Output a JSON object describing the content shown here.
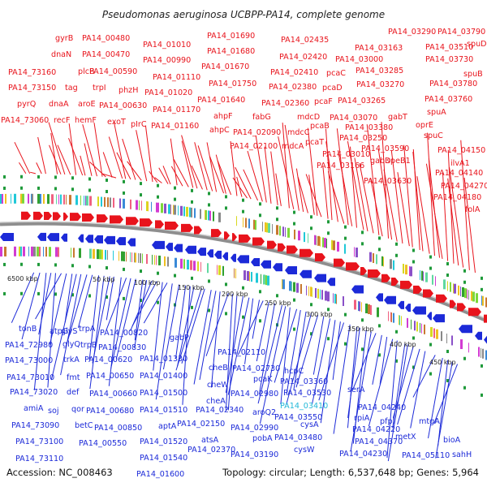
{
  "title": "Pseudomonas aeruginosa UCBPP-PA14, complete genome",
  "accession": "Accession: NC_008463",
  "topology": "Topology: circular; Length: 6,537,648 bp; Genes: 5,964",
  "colors": {
    "forward": "#e8141c",
    "reverse": "#1c2ad8",
    "cyan_label": "#22b8d8",
    "backbone": "#8e8e8e",
    "tick_green": "#1f9a3a"
  },
  "kbp_labels": [
    {
      "text": "6500 kbp",
      "id": "kbp-6500"
    },
    {
      "text": "50 kbp",
      "id": "kbp-50"
    },
    {
      "text": "100 kbp",
      "id": "kbp-100"
    },
    {
      "text": "150 kbp",
      "id": "kbp-150"
    },
    {
      "text": "200 kbp",
      "id": "kbp-200"
    },
    {
      "text": "250 kbp",
      "id": "kbp-250"
    },
    {
      "text": "300 kbp",
      "id": "kbp-300"
    },
    {
      "text": "350 kbp",
      "id": "kbp-350"
    },
    {
      "text": "400 kbp",
      "id": "kbp-400"
    },
    {
      "text": "450 kbp",
      "id": "kbp-450"
    }
  ],
  "forward_genes": [
    "PA14_73160",
    "PA14_73150",
    "PA14_73060",
    "pyrQ",
    "dnaA",
    "recF",
    "gyrB",
    "dnaN",
    "tag",
    "plcB",
    "PA14_00480",
    "PA14_00470",
    "aroE",
    "hemF",
    "trpI",
    "PA14_00590",
    "phzH",
    "PA14_00630",
    "exoT",
    "pIrC",
    "PA14_01010",
    "PA14_00990",
    "PA14_01110",
    "PA14_01020",
    "PA14_01170",
    "PA14_01160",
    "PA14_01690",
    "PA14_01680",
    "PA14_01670",
    "PA14_01750",
    "PA14_01640",
    "ahpF",
    "ahpC",
    "PA14_02435",
    "PA14_02420",
    "PA14_02410",
    "PA14_02380",
    "PA14_02360",
    "fabG",
    "mdcD",
    "PA14_02090",
    "mdcC",
    "PA14_02100",
    "mdcA",
    "pcaC",
    "pcaD",
    "PA14_03000",
    "pcaF",
    "pcaB",
    "pcaT",
    "PA14_03070",
    "PA14_03010",
    "PA14_03166",
    "PA14_03163",
    "PA14_03285",
    "PA14_03270",
    "PA14_03265",
    "PA14_03250",
    "PA14_03380",
    "PA14_03590",
    "gabD",
    "speB1",
    "PA14_03630",
    "gabT",
    "PA14_03290",
    "PA14_03790",
    "PA14_03510",
    "spuD",
    "PA14_03730",
    "spuB",
    "PA14_03780",
    "PA14_03760",
    "spuA",
    "oprE",
    "spuC",
    "PA14_04150",
    "ilvA1",
    "PA14_04140",
    "PA14_04270",
    "PA14_04180",
    "folA"
  ],
  "reverse_genes": [
    "tonB",
    "atpG",
    "glyS",
    "trpA",
    "PA14_00820",
    "PA14_72980",
    "glyQ",
    "trpB",
    "PA14_00830",
    "PA14_73000",
    "trkA",
    "PA14_00620",
    "PA14_73010",
    "fmt",
    "PA14_00650",
    "PA14_73020",
    "def",
    "qor",
    "PA14_00660",
    "amiA",
    "soj",
    "PA14_00680",
    "PA14_73090",
    "betC",
    "PA14_00850",
    "PA14_73100",
    "PA14_00550",
    "PA14_73110",
    "gabP",
    "PA14_01330",
    "PA14_01400",
    "PA14_01500",
    "PA14_01510",
    "aptA",
    "PA14_01520",
    "PA14_01540",
    "PA14_01600",
    "PA14_02110",
    "cheB",
    "cheW",
    "cheA",
    "PA14_02340",
    "PA14_02150",
    "atsA",
    "PA14_02370",
    "PA14_02730",
    "pcaK",
    "PA14_02980",
    "aroQ2",
    "PA14_02990",
    "pobA",
    "PA14_03190",
    "hcpC",
    "PA14_03360",
    "PA14_03530",
    "PA14_03410",
    "PA14_03550",
    "cysA",
    "PA14_03480",
    "cysW",
    "serA",
    "PA14_04240",
    "rpiA",
    "PA14_04220",
    "PA14_04370",
    "PA14_04230",
    "pfpI",
    "mtgA",
    "metX",
    "bioA",
    "PA14_05110",
    "sahH"
  ]
}
